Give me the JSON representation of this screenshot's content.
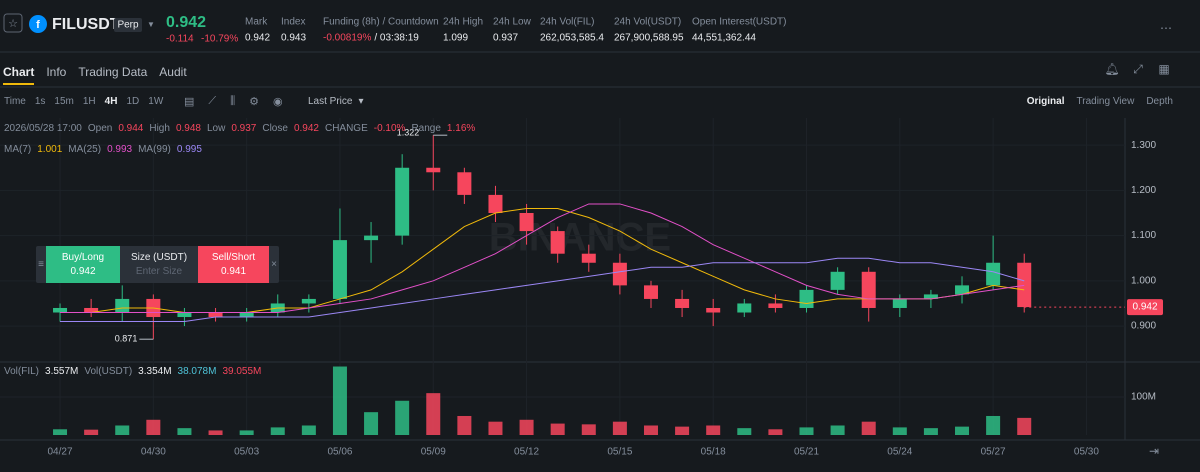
{
  "header": {
    "symbol": "FILUSDT",
    "contract_type": "Perp",
    "last_price": "0.942",
    "change": "-0.114",
    "change_pct": "-10.79%",
    "stats": [
      {
        "label": "Mark",
        "value": "0.942"
      },
      {
        "label": "Index",
        "value": "0.943"
      },
      {
        "label": "Funding (8h) / Countdown",
        "value": "-0.00819%",
        "extra": "/ 03:38:19"
      },
      {
        "label": "24h High",
        "value": "1.099"
      },
      {
        "label": "24h Low",
        "value": "0.937"
      },
      {
        "label": "24h Vol(FIL)",
        "value": "262,053,585.4"
      },
      {
        "label": "24h Vol(USDT)",
        "value": "267,900,588.95"
      },
      {
        "label": "Open Interest(USDT)",
        "value": "44,551,362.44"
      }
    ]
  },
  "tabs": [
    "Chart",
    "Info",
    "Trading Data",
    "Audit"
  ],
  "toolbar": {
    "intervals": [
      "Time",
      "1s",
      "15m",
      "1H",
      "4H",
      "1D",
      "1W"
    ],
    "price_type": "Last Price",
    "views": [
      "Original",
      "Trading View",
      "Depth"
    ]
  },
  "ohlc_legend": {
    "time": "2026/05/28 17:00",
    "items": [
      {
        "label": "Open",
        "value": "0.944"
      },
      {
        "label": "High",
        "value": "0.948"
      },
      {
        "label": "Low",
        "value": "0.937"
      },
      {
        "label": "Close",
        "value": "0.942"
      },
      {
        "label": "CHANGE",
        "value": "-0.10%"
      },
      {
        "label": "Range",
        "value": "1.16%"
      }
    ]
  },
  "ma_legend": [
    {
      "label": "MA(7)",
      "value": "1.001",
      "color": "#f0b90b"
    },
    {
      "label": "MA(25)",
      "value": "0.993",
      "color": "#e250c8"
    },
    {
      "label": "MA(99)",
      "value": "0.995",
      "color": "#9b87f5"
    }
  ],
  "vol_legend": [
    {
      "label": "Vol(FIL)",
      "value": "3.557M"
    },
    {
      "label": "Vol(USDT)",
      "value": "3.354M"
    },
    {
      "label": "",
      "value": "38.078M",
      "color": "#4fc3d8"
    },
    {
      "label": "",
      "value": "39.055M",
      "color": "#f6465d"
    }
  ],
  "watermark": "BINANCE",
  "order_widget": {
    "buy_label": "Buy/Long",
    "buy_price": "0.942",
    "size_label": "Size (USDT)",
    "size_placeholder": "Enter Size",
    "sell_label": "Sell/Short",
    "sell_price": "0.941"
  },
  "chart_data": {
    "type": "candlestick",
    "x": [
      0,
      1,
      2,
      3,
      4,
      5,
      6,
      7,
      8,
      9,
      10,
      11,
      12,
      13,
      14,
      15,
      16,
      17,
      18,
      19,
      20,
      21,
      22,
      23,
      24,
      25,
      26,
      27,
      28,
      29,
      30,
      31
    ],
    "xlim": [
      -1.93,
      34.24
    ],
    "xticks": [
      {
        "value": 0,
        "label": "04/27"
      },
      {
        "value": 3,
        "label": "04/30"
      },
      {
        "value": 6,
        "label": "05/03"
      },
      {
        "value": 9,
        "label": "05/06"
      },
      {
        "value": 12,
        "label": "05/09"
      },
      {
        "value": 15,
        "label": "05/12"
      },
      {
        "value": 18,
        "label": "05/15"
      },
      {
        "value": 21,
        "label": "05/18"
      },
      {
        "value": 24,
        "label": "05/21"
      },
      {
        "value": 27,
        "label": "05/24"
      },
      {
        "value": 30,
        "label": "05/27"
      },
      {
        "value": 33,
        "label": "05/30"
      }
    ],
    "open": [
      0.93,
      0.94,
      0.93,
      0.96,
      0.92,
      0.93,
      0.92,
      0.93,
      0.95,
      0.96,
      1.09,
      1.1,
      1.25,
      1.24,
      1.19,
      1.15,
      1.11,
      1.06,
      1.04,
      0.99,
      0.96,
      0.94,
      0.93,
      0.95,
      0.94,
      0.98,
      1.02,
      0.94,
      0.96,
      0.97,
      0.99,
      1.04
    ],
    "high": [
      0.95,
      0.96,
      0.99,
      0.97,
      0.94,
      0.94,
      0.94,
      0.97,
      0.97,
      1.16,
      1.13,
      1.28,
      1.322,
      1.25,
      1.21,
      1.17,
      1.12,
      1.08,
      1.06,
      1.0,
      0.98,
      0.96,
      0.96,
      0.97,
      0.99,
      1.03,
      1.03,
      0.97,
      0.98,
      1.01,
      1.1,
      1.06
    ],
    "low": [
      0.91,
      0.92,
      0.91,
      0.871,
      0.9,
      0.91,
      0.91,
      0.92,
      0.93,
      0.95,
      1.04,
      1.08,
      1.2,
      1.17,
      1.13,
      1.08,
      1.04,
      1.02,
      0.97,
      0.94,
      0.92,
      0.9,
      0.92,
      0.93,
      0.93,
      0.97,
      0.91,
      0.92,
      0.94,
      0.95,
      0.98,
      0.93
    ],
    "close": [
      0.94,
      0.93,
      0.96,
      0.92,
      0.93,
      0.92,
      0.93,
      0.95,
      0.96,
      1.09,
      1.1,
      1.25,
      1.24,
      1.19,
      1.15,
      1.11,
      1.06,
      1.04,
      0.99,
      0.96,
      0.94,
      0.93,
      0.95,
      0.94,
      0.98,
      1.02,
      0.94,
      0.96,
      0.97,
      0.99,
      1.04,
      0.942
    ],
    "ma": [
      {
        "name": "MA(7)",
        "color": "#f0b90b",
        "values": [
          0.93,
          0.93,
          0.94,
          0.94,
          0.93,
          0.93,
          0.93,
          0.94,
          0.94,
          0.96,
          0.98,
          1.02,
          1.07,
          1.12,
          1.15,
          1.16,
          1.16,
          1.14,
          1.11,
          1.07,
          1.04,
          1.01,
          0.98,
          0.96,
          0.95,
          0.96,
          0.96,
          0.96,
          0.96,
          0.97,
          0.99,
          0.98
        ]
      },
      {
        "name": "MA(25)",
        "color": "#e250c8",
        "values": [
          0.93,
          0.93,
          0.93,
          0.93,
          0.93,
          0.93,
          0.93,
          0.93,
          0.94,
          0.95,
          0.96,
          0.98,
          1.0,
          1.03,
          1.06,
          1.1,
          1.14,
          1.17,
          1.17,
          1.15,
          1.12,
          1.08,
          1.05,
          1.02,
          0.99,
          0.97,
          0.96,
          0.96,
          0.96,
          0.97,
          0.98,
          0.99
        ]
      },
      {
        "name": "MA(99)",
        "color": "#9b87f5",
        "values": [
          0.91,
          0.91,
          0.91,
          0.91,
          0.91,
          0.92,
          0.92,
          0.92,
          0.92,
          0.93,
          0.94,
          0.95,
          0.96,
          0.97,
          0.98,
          0.99,
          1.0,
          1.01,
          1.02,
          1.03,
          1.03,
          1.04,
          1.04,
          1.04,
          1.04,
          1.05,
          1.05,
          1.04,
          1.04,
          1.03,
          1.02,
          1.0
        ]
      }
    ],
    "ylim": [
      0.825,
      1.36
    ],
    "yticks": [
      {
        "value": 0.9,
        "label": "0.900"
      },
      {
        "value": 1.0,
        "label": "1.000"
      },
      {
        "value": 1.1,
        "label": "1.100"
      },
      {
        "value": 1.2,
        "label": "1.200"
      },
      {
        "value": 1.3,
        "label": "1.300"
      }
    ],
    "annotations": [
      {
        "x": 12,
        "value": 1.322
      },
      {
        "x": 3,
        "value": 0.871
      }
    ],
    "current_price": 0.942,
    "up_color": "#2ebd85",
    "down_color": "#f6465d",
    "grid": true,
    "volume": {
      "values": [
        15000000,
        14000000,
        25000000,
        40000000,
        18000000,
        12000000,
        12000000,
        20000000,
        25000000,
        180000000,
        60000000,
        90000000,
        110000000,
        50000000,
        35000000,
        40000000,
        30000000,
        28000000,
        35000000,
        25000000,
        22000000,
        25000000,
        18000000,
        15000000,
        20000000,
        25000000,
        35000000,
        20000000,
        18000000,
        22000000,
        50000000,
        45000000
      ],
      "ylim": [
        0,
        184000000
      ],
      "yticks": [
        {
          "value": 100000000,
          "label": "100M"
        }
      ]
    }
  }
}
